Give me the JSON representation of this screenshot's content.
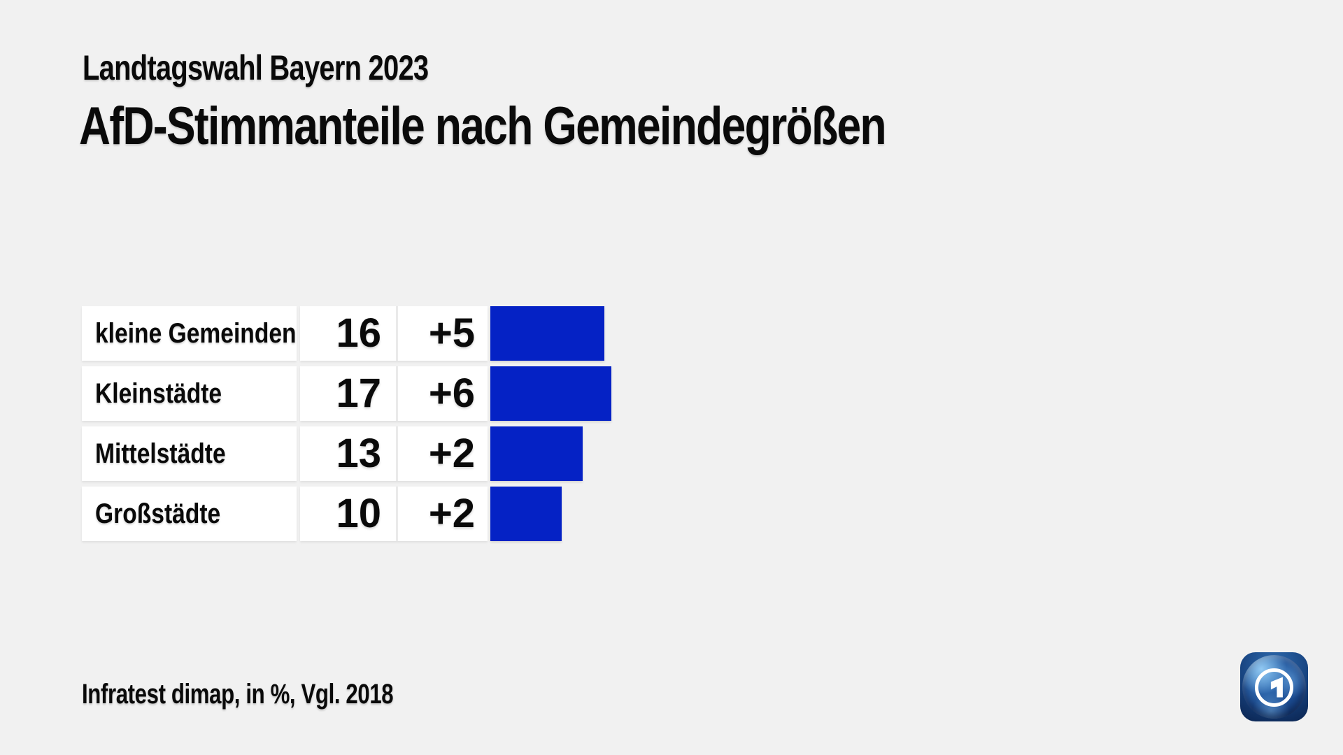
{
  "header": {
    "subtitle": "Landtagswahl Bayern 2023",
    "title": "AfD-Stimmanteile nach Gemeindegrößen"
  },
  "chart_data": {
    "type": "bar",
    "orientation": "horizontal",
    "title": "AfD-Stimmanteile nach Gemeindegrößen",
    "subtitle": "Landtagswahl Bayern 2023",
    "categories": [
      "kleine Gemeinden",
      "Kleinstädte",
      "Mittelstädte",
      "Großstädte"
    ],
    "values": [
      16,
      17,
      13,
      10
    ],
    "changes": [
      "+5",
      "+6",
      "+2",
      "+2"
    ],
    "unit": "%",
    "comparison": "Vgl. 2018",
    "source": "Infratest dimap",
    "xlim": [
      0,
      17
    ],
    "grid": false,
    "legend": false,
    "bar_color": "#0522c5"
  },
  "footer": {
    "note": "Infratest dimap, in %, Vgl. 2018"
  },
  "colors": {
    "background": "#f1f1f1",
    "cell": "#ffffff",
    "text": "#0a0a0a",
    "bar": "#0522c5",
    "divider": "#eaeaea",
    "logo_square": "#16417d",
    "logo_ring": "#ffffff"
  },
  "logo": {
    "name": "ARD"
  }
}
